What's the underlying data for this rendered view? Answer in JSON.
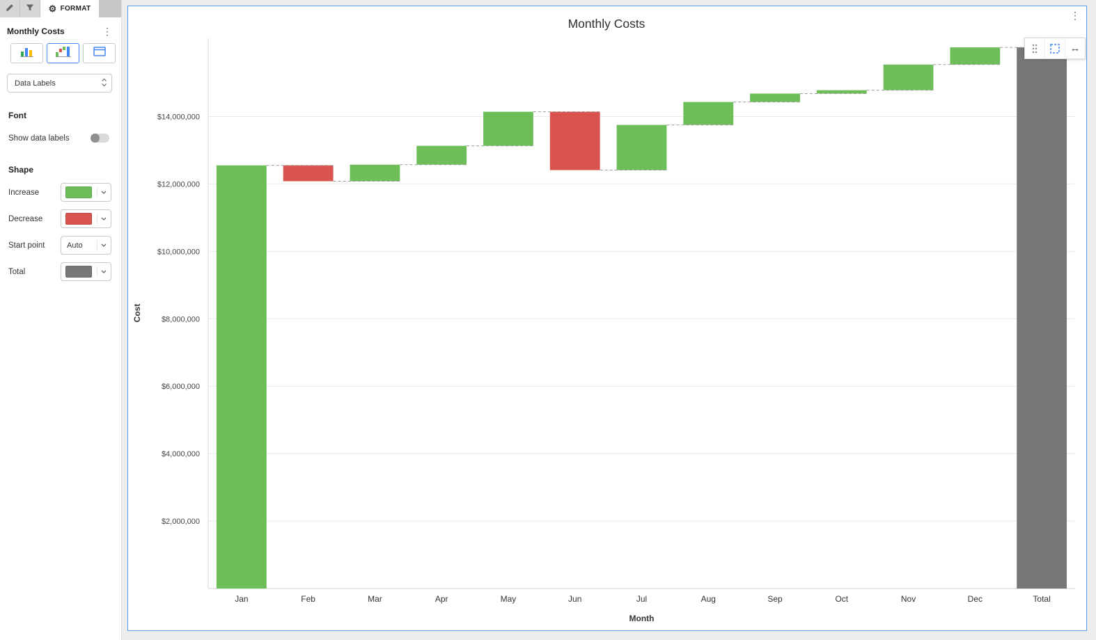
{
  "tabs": {
    "format_label": "FORMAT"
  },
  "sidebar": {
    "title": "Monthly Costs",
    "data_labels_dropdown_value": "Data Labels",
    "font": {
      "heading": "Font",
      "show_data_labels_label": "Show data labels",
      "show_data_labels_enabled": false
    },
    "shape": {
      "heading": "Shape",
      "increase_label": "Increase",
      "increase_color": "#6dbe59",
      "decrease_label": "Decrease",
      "decrease_color": "#d9534f",
      "start_point_label": "Start point",
      "start_point_value": "Auto",
      "total_label": "Total",
      "total_color": "#777777"
    }
  },
  "chart_data": {
    "type": "waterfall",
    "title": "Monthly Costs",
    "xlabel": "Month",
    "ylabel": "Cost",
    "categories": [
      "Jan",
      "Feb",
      "Mar",
      "Apr",
      "May",
      "Jun",
      "Jul",
      "Aug",
      "Sep",
      "Oct",
      "Nov",
      "Dec",
      "Total"
    ],
    "changes": [
      12550000,
      -470000,
      490000,
      560000,
      1010000,
      -1730000,
      1340000,
      680000,
      250000,
      100000,
      760000,
      510000,
      null
    ],
    "cumulative": [
      12550000,
      12080000,
      12570000,
      13130000,
      14140000,
      12410000,
      13750000,
      14430000,
      14680000,
      14780000,
      15540000,
      16050000,
      16050000
    ],
    "total": 16050000,
    "y_axis": {
      "min": 0,
      "max": 16320000,
      "tick_interval": 2000000,
      "tick_labels": [
        "$2,000,000",
        "$4,000,000",
        "$6,000,000",
        "$8,000,000",
        "$10,000,000",
        "$12,000,000",
        "$14,000,000"
      ]
    },
    "colors": {
      "increase": "#6dbe59",
      "decrease": "#d9534f",
      "total": "#777777"
    },
    "connector_style": "dashed",
    "grid": true,
    "legend": false
  }
}
